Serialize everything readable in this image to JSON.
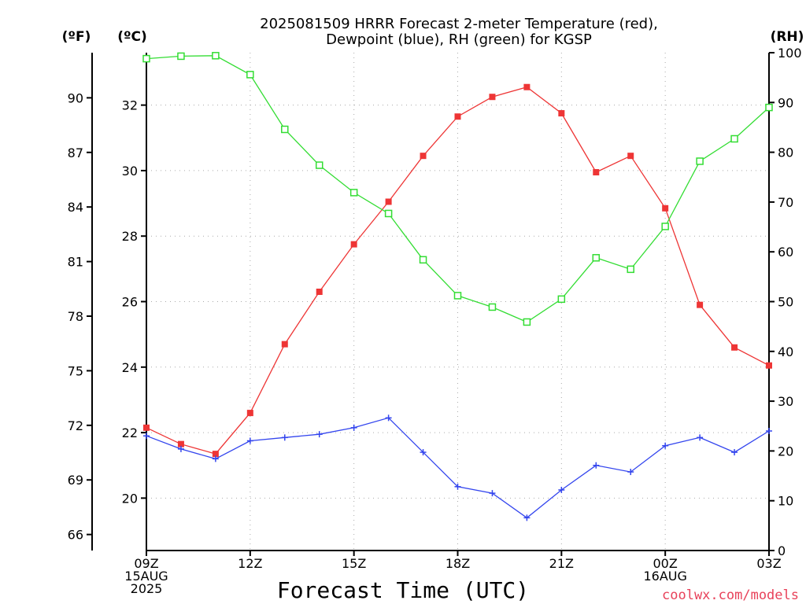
{
  "title": {
    "line1": "2025081509 HRRR Forecast 2-meter Temperature (red),",
    "line2": "Dewpoint (blue), RH (green) for KGSP"
  },
  "axes": {
    "f_label": "(ºF)",
    "c_label": "(ºC)",
    "rh_label": "(RH)",
    "xlabel": "Forecast Time (UTC)"
  },
  "credit": {
    "text": "coolwx.com/models",
    "color": "#e8425a"
  },
  "chart_data": {
    "type": "line",
    "x": [
      9,
      10,
      11,
      12,
      13,
      14,
      15,
      16,
      17,
      18,
      19,
      20,
      21,
      22,
      23,
      24,
      25,
      26,
      27
    ],
    "x_tick_positions": [
      9,
      12,
      15,
      18,
      21,
      24,
      27
    ],
    "x_tick_labels": [
      [
        "09Z",
        "15AUG",
        "2025"
      ],
      [
        "12Z"
      ],
      [
        "15Z"
      ],
      [
        "18Z"
      ],
      [
        "21Z"
      ],
      [
        "00Z",
        "16AUG"
      ],
      [
        "03Z"
      ]
    ],
    "xlim": [
      9,
      27
    ],
    "ylim_c": [
      18.4,
      33.6
    ],
    "ylim_rh": [
      0,
      100
    ],
    "c_ticks": [
      20,
      22,
      24,
      26,
      28,
      30,
      32
    ],
    "f_ticks": [
      66,
      69,
      72,
      75,
      78,
      81,
      84,
      87,
      90
    ],
    "rh_ticks": [
      0,
      10,
      20,
      30,
      40,
      50,
      60,
      70,
      80,
      90,
      100
    ],
    "grid": true,
    "series": [
      {
        "name": "Temperature (red)",
        "unit": "C",
        "color": "#ee3535",
        "marker": "filled-square",
        "values": [
          22.15,
          21.65,
          21.35,
          22.6,
          24.7,
          26.3,
          27.75,
          29.05,
          30.45,
          31.65,
          32.25,
          32.55,
          31.75,
          29.95,
          30.45,
          28.85,
          25.9,
          24.6,
          24.05
        ]
      },
      {
        "name": "Dewpoint (blue)",
        "unit": "C",
        "color": "#3345ee",
        "marker": "plus",
        "values": [
          21.9,
          21.5,
          21.2,
          21.75,
          21.85,
          21.95,
          22.15,
          22.45,
          21.4,
          20.35,
          20.15,
          19.4,
          20.25,
          21.0,
          20.8,
          21.6,
          21.85,
          21.4,
          22.05
        ]
      },
      {
        "name": "RH (green)",
        "unit": "%",
        "color": "#33dd33",
        "marker": "open-square",
        "values": [
          98.8,
          99.3,
          99.4,
          95.6,
          84.6,
          77.4,
          71.9,
          67.7,
          58.4,
          51.2,
          48.9,
          45.9,
          50.5,
          58.8,
          56.5,
          65.1,
          78.2,
          82.7,
          89.0
        ]
      }
    ]
  }
}
